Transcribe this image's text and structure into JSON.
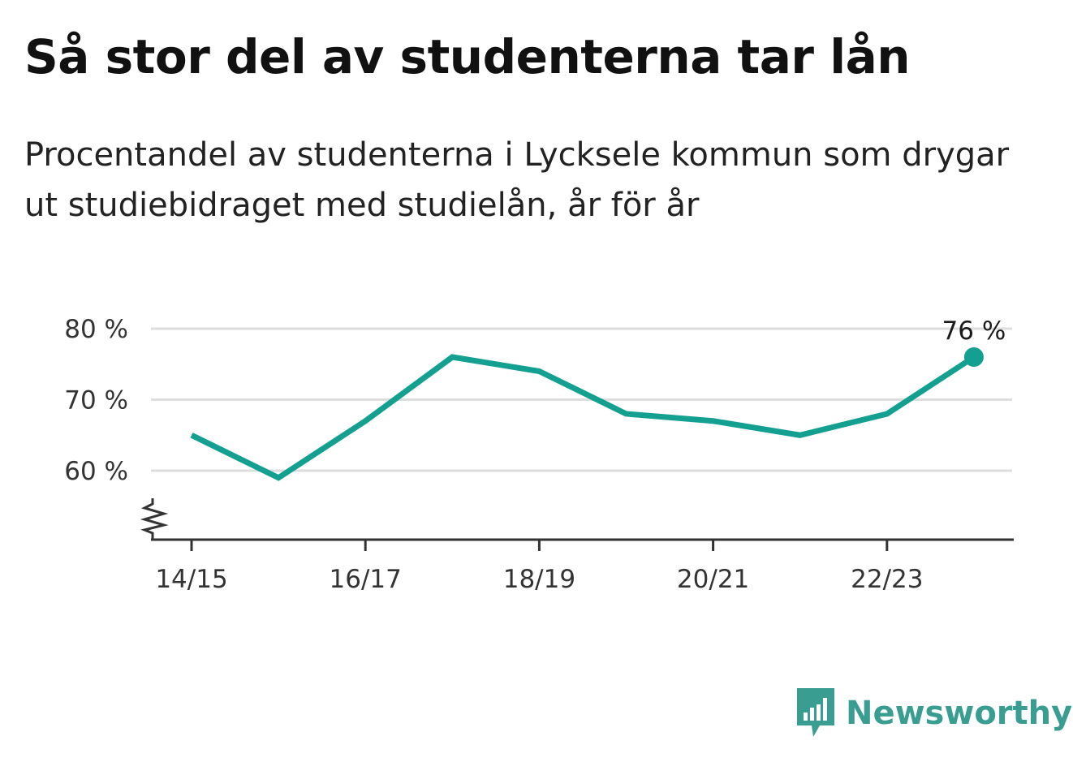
{
  "title": "Så stor del av studenterna tar lån",
  "subtitle": "Procentandel av studenterna i Lycksele kommun som drygar ut studiebidraget med studielån, år för år",
  "brand": {
    "name": "Newsworthy",
    "icon": "newsworthy-logo-icon",
    "color": "#3a9d91"
  },
  "chart_data": {
    "type": "line",
    "title": "Så stor del av studenterna tar lån",
    "subtitle": "Procentandel av studenterna i Lycksele kommun som drygar ut studiebidraget med studielån, år för år",
    "x": [
      "14/15",
      "15/16",
      "16/17",
      "17/18",
      "18/19",
      "19/20",
      "20/21",
      "21/22",
      "22/23",
      "23/24"
    ],
    "series": [
      {
        "values": [
          65,
          59,
          67,
          76,
          74,
          68,
          67,
          65,
          68,
          76
        ],
        "color": "#14a091"
      }
    ],
    "x_tick_labels": [
      "14/15",
      "16/17",
      "18/19",
      "20/21",
      "22/23"
    ],
    "y_ticks": [
      60,
      70,
      80
    ],
    "y_tick_labels": [
      "60 %",
      "70 %",
      "80 %"
    ],
    "ylim": [
      50,
      80
    ],
    "axis_break": true,
    "grid": true,
    "annotation": {
      "index": 9,
      "label": "76 %"
    },
    "colors": {
      "line": "#14a091",
      "grid": "#dddddd",
      "axis": "#333333"
    }
  }
}
